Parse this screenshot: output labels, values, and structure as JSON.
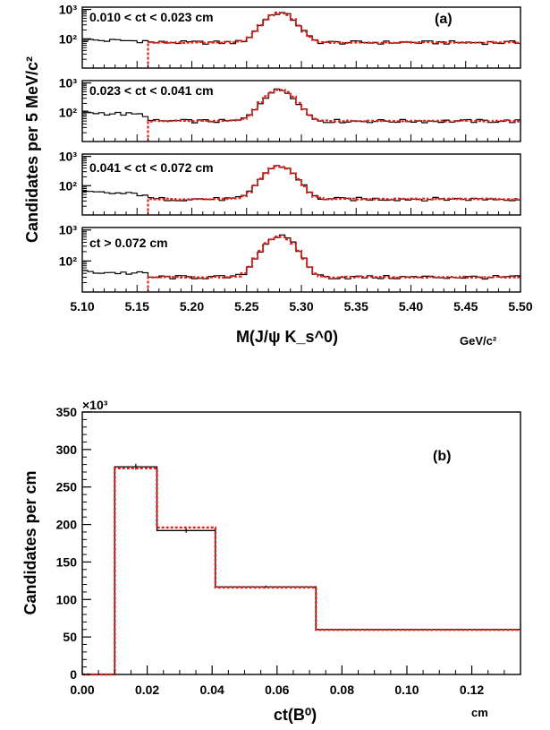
{
  "colors": {
    "data": "#000000",
    "fit": "#e8201a"
  },
  "chart_data": [
    {
      "tag": "(a)",
      "type": "line",
      "ylabel": "Candidates per 5 MeV/c²",
      "xlabel": "M(J/ψ K_s^0)",
      "xunit": "GeV/c²",
      "xlim": [
        5.1,
        5.5
      ],
      "x_ticks": [
        "5.10",
        "5.15",
        "5.20",
        "5.25",
        "5.30",
        "5.35",
        "5.40",
        "5.45",
        "5.50"
      ],
      "yscale": "log",
      "bin_width_gev": 0.005,
      "panels": [
        {
          "label": "0.010 < ct < 0.023 cm",
          "ylim": [
            10,
            1200
          ],
          "y_ticks": [
            "10²",
            "10³"
          ],
          "background": 75,
          "left_level": 90,
          "peak_height": 700,
          "peak_mean": 5.28,
          "peak_sigma": 0.0115,
          "fit_start": 5.16
        },
        {
          "label": "0.023 < ct < 0.041 cm",
          "ylim": [
            10,
            1200
          ],
          "y_ticks": [
            "10²",
            "10³"
          ],
          "background": 50,
          "left_level": 100,
          "peak_height": 520,
          "peak_mean": 5.28,
          "peak_sigma": 0.0115,
          "fit_start": 5.16
        },
        {
          "label": "0.041 < ct < 0.072 cm",
          "ylim": [
            10,
            1200
          ],
          "y_ticks": [
            "10²",
            "10³"
          ],
          "background": 35,
          "left_level": 60,
          "peak_height": 430,
          "peak_mean": 5.28,
          "peak_sigma": 0.0115,
          "fit_start": 5.16
        },
        {
          "label": "ct > 0.072 cm",
          "ylim": [
            10,
            1200
          ],
          "y_ticks": [
            "10²",
            "10³"
          ],
          "background": 30,
          "left_level": 45,
          "peak_height": 600,
          "peak_mean": 5.28,
          "peak_sigma": 0.0115,
          "fit_start": 5.16
        }
      ],
      "series": [
        {
          "name": "",
          "style": "histogram"
        },
        {
          "name": "",
          "style": "fit"
        }
      ]
    },
    {
      "tag": "(b)",
      "type": "line",
      "ylabel": "Candidates per cm",
      "xlabel": "ct(B⁰)",
      "xunit": "cm",
      "yexponent": "×10³",
      "xlim": [
        0.0,
        0.135
      ],
      "ylim": [
        0,
        350
      ],
      "x_ticks": [
        "0.00",
        "0.02",
        "0.04",
        "0.06",
        "0.08",
        "0.10",
        "0.12"
      ],
      "y_ticks": [
        "0",
        "50",
        "100",
        "150",
        "200",
        "250",
        "300",
        "350"
      ],
      "bin_edges": [
        0.0,
        0.01,
        0.023,
        0.041,
        0.072,
        0.135
      ],
      "data_values": [
        0,
        277,
        192,
        117,
        60
      ],
      "data_errors": [
        0,
        4,
        3,
        1.5,
        0.5
      ],
      "fit_values": [
        0,
        275,
        196,
        116,
        59.5
      ]
    }
  ]
}
